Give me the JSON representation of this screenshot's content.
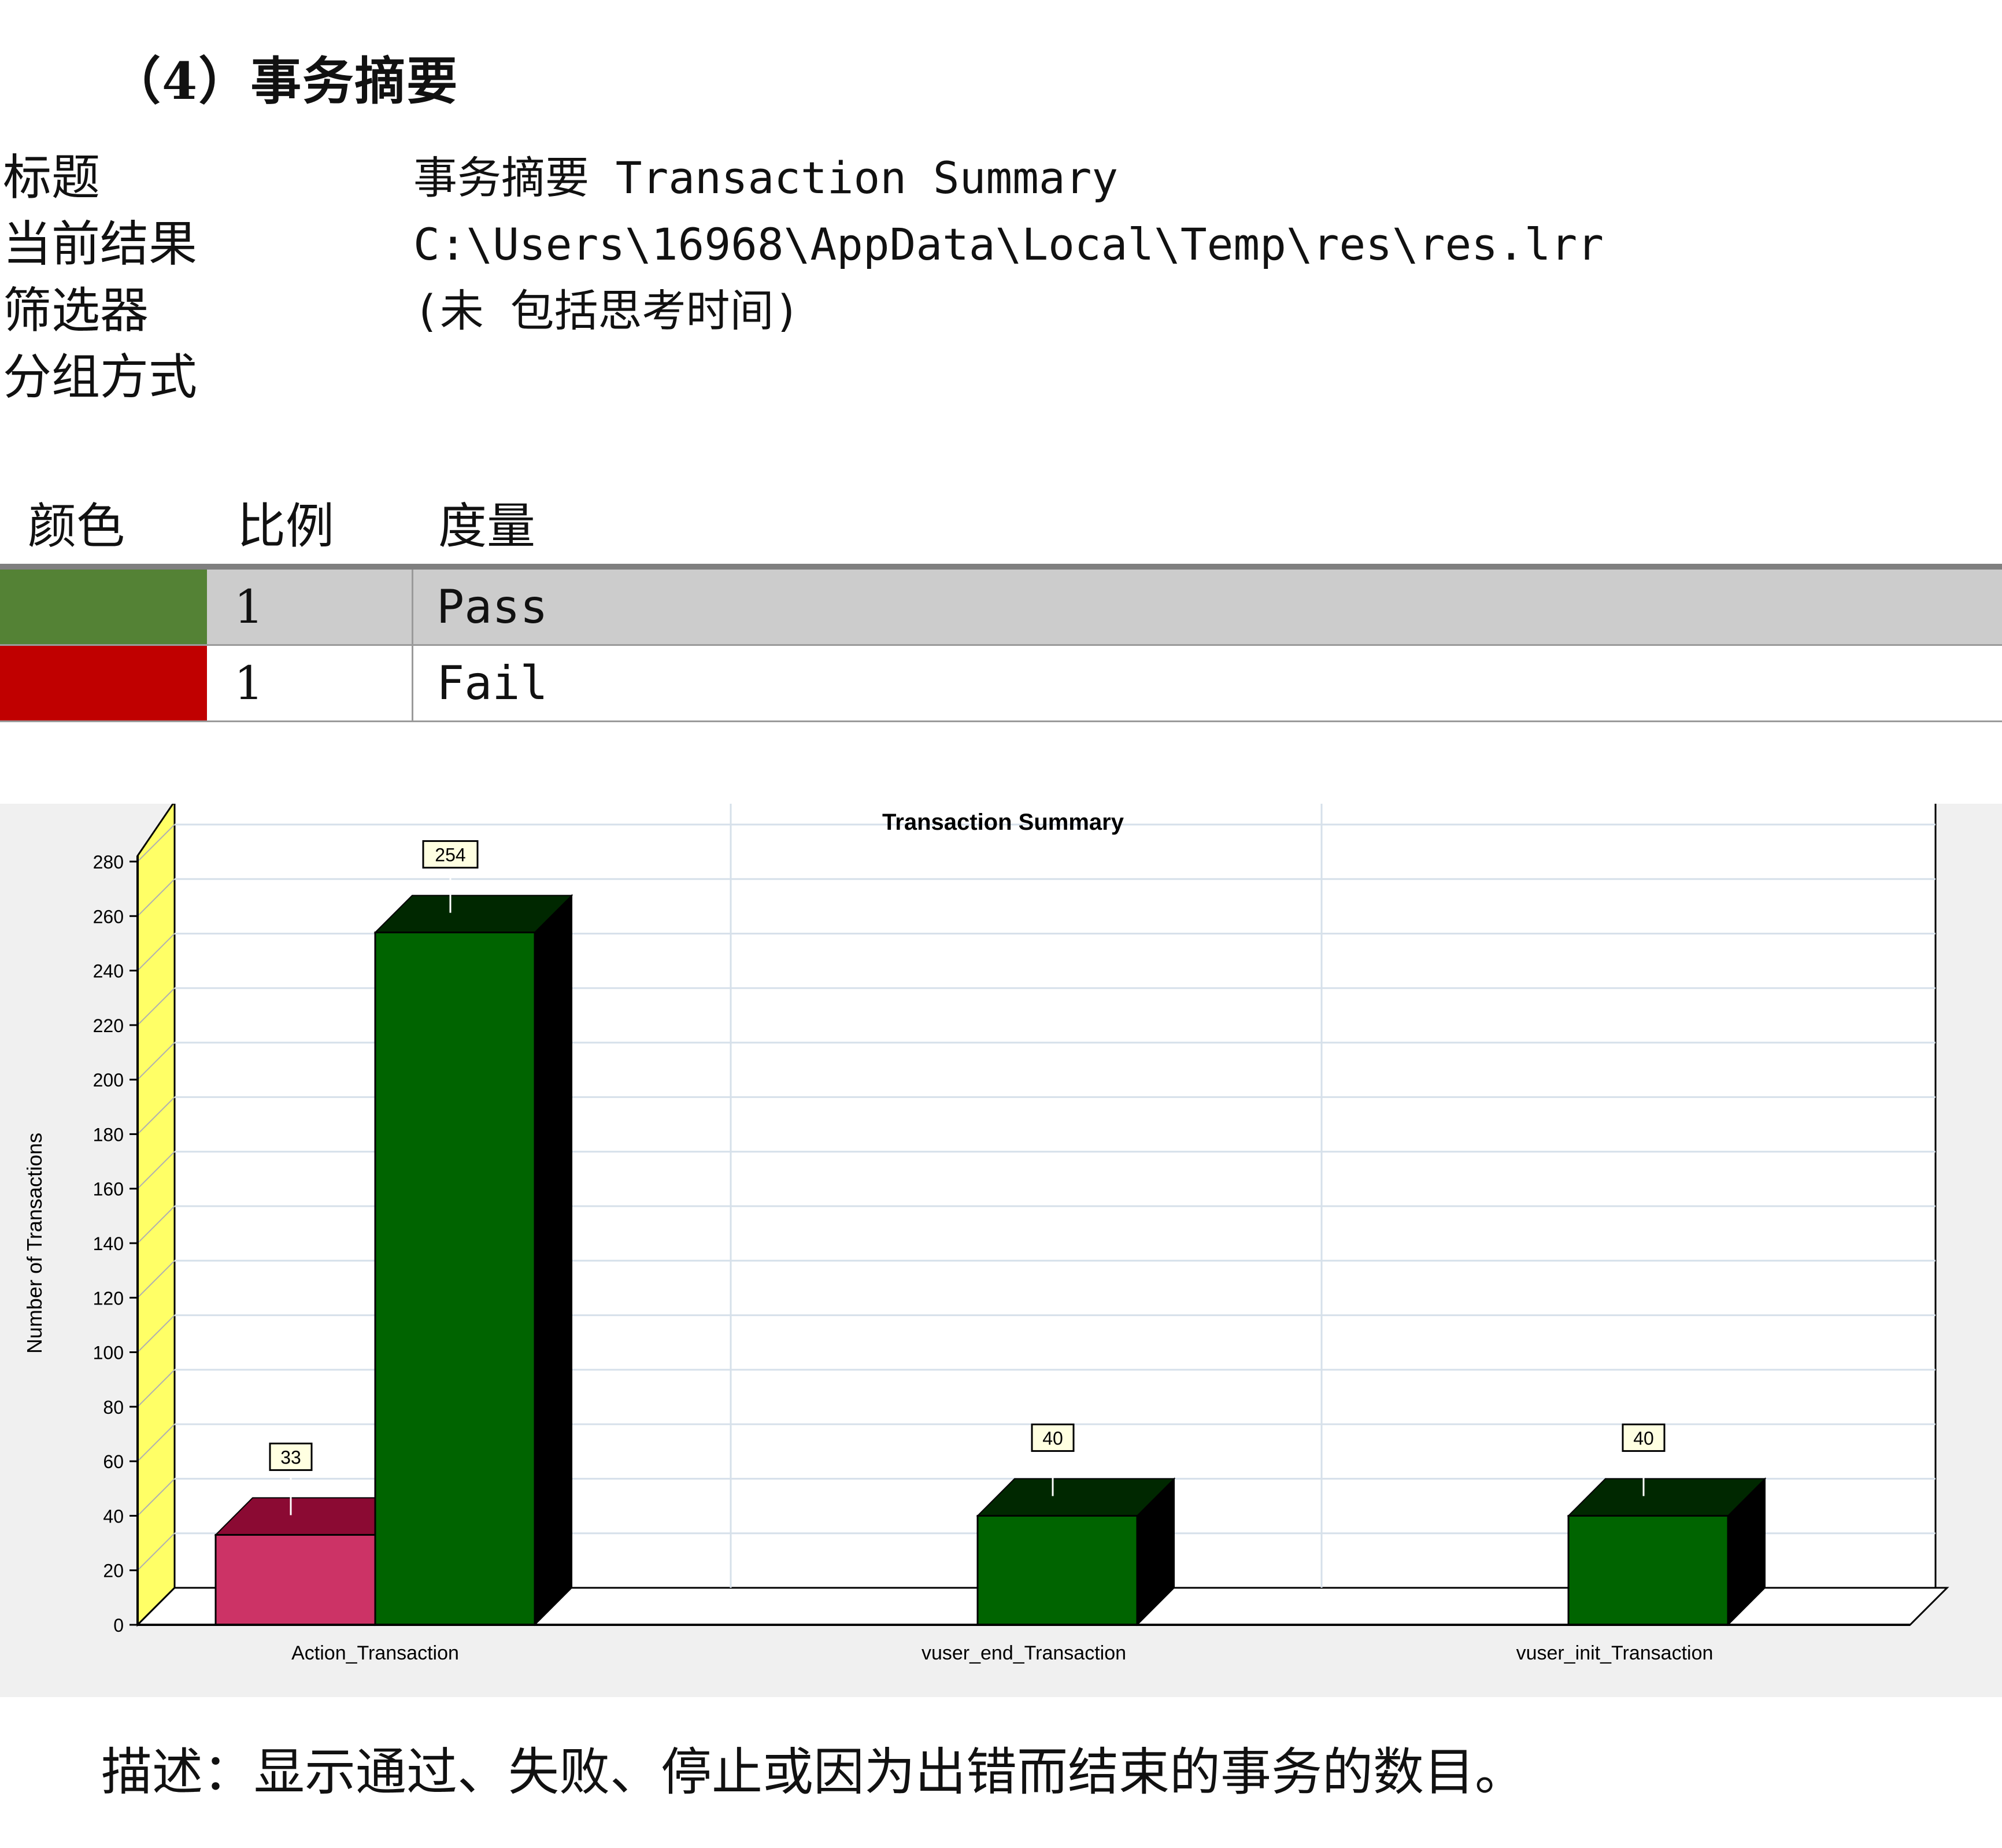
{
  "section_heading": "（4）事务摘要",
  "info": [
    {
      "label": "标题",
      "value": "事务摘要 Transaction Summary"
    },
    {
      "label": "当前结果",
      "value": "C:\\Users\\16968\\AppData\\Local\\Temp\\res\\res.lrr"
    },
    {
      "label": "筛选器",
      "value": "(未 包括思考时间)"
    },
    {
      "label": "分组方式",
      "value": ""
    }
  ],
  "legend": {
    "headers": {
      "color": "颜色",
      "scale": "比例",
      "measure": "度量"
    },
    "rows": [
      {
        "color": "#548235",
        "scale": "1",
        "measure": "Pass"
      },
      {
        "color": "#c00000",
        "scale": "1",
        "measure": "Fail"
      }
    ]
  },
  "chart_data": {
    "type": "bar",
    "title": "Transaction Summary",
    "ylabel": "Number of Transactions",
    "xlabel": "",
    "ylim": [
      0,
      280
    ],
    "yticks": [
      0,
      20,
      40,
      60,
      80,
      100,
      120,
      140,
      160,
      180,
      200,
      220,
      240,
      260,
      280
    ],
    "categories": [
      "Action_Transaction",
      "vuser_end_Transaction",
      "vuser_init_Transaction"
    ],
    "series": [
      {
        "name": "Fail",
        "values": [
          33,
          null,
          null
        ],
        "color": "#cc3366",
        "top_color": "#8b0a33",
        "side_color": "#660022"
      },
      {
        "name": "Pass",
        "values": [
          254,
          40,
          40
        ],
        "color": "#006400",
        "top_color": "#002800",
        "side_color": "#000000"
      }
    ],
    "grid": true,
    "style": "3d",
    "wall_color": "#ffff66"
  },
  "description": "描述：显示通过、失败、停止或因为出错而结束的事务的数目。"
}
